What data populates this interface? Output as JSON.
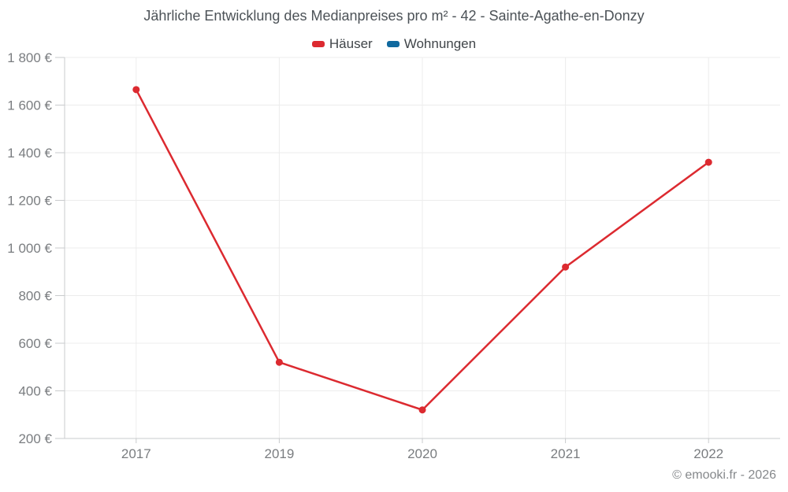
{
  "chart": {
    "title": "Jährliche Entwicklung des Medianpreises pro m² - 42 - Sainte-Agathe-en-Donzy",
    "copyright": "© emooki.fr - 2026"
  },
  "chart_data": {
    "type": "line",
    "title": "Jährliche Entwicklung des Medianpreises pro m² - 42 - Sainte-Agathe-en-Donzy",
    "categories": [
      "2017",
      "2019",
      "2020",
      "2021",
      "2022"
    ],
    "series": [
      {
        "name": "Häuser",
        "color": "#dc2a30",
        "values": [
          1665,
          520,
          320,
          920,
          1360
        ]
      },
      {
        "name": "Wohnungen",
        "color": "#10699f",
        "values": []
      }
    ],
    "xlabel": "",
    "ylabel": "",
    "ylim": [
      200,
      1800
    ],
    "yticks": {
      "values": [
        200,
        400,
        600,
        800,
        1000,
        1200,
        1400,
        1600,
        1800
      ],
      "labels": [
        "200 €",
        "400 €",
        "600 €",
        "800 €",
        "1 000 €",
        "1 200 €",
        "1 400 €",
        "1 600 €",
        "1 800 €"
      ]
    },
    "grid": true,
    "legend_position": "top",
    "marker": "circle"
  },
  "style": {
    "grid_color": "#ececec",
    "axis_color": "#c9cbcd",
    "label_color": "#7a7d80"
  }
}
